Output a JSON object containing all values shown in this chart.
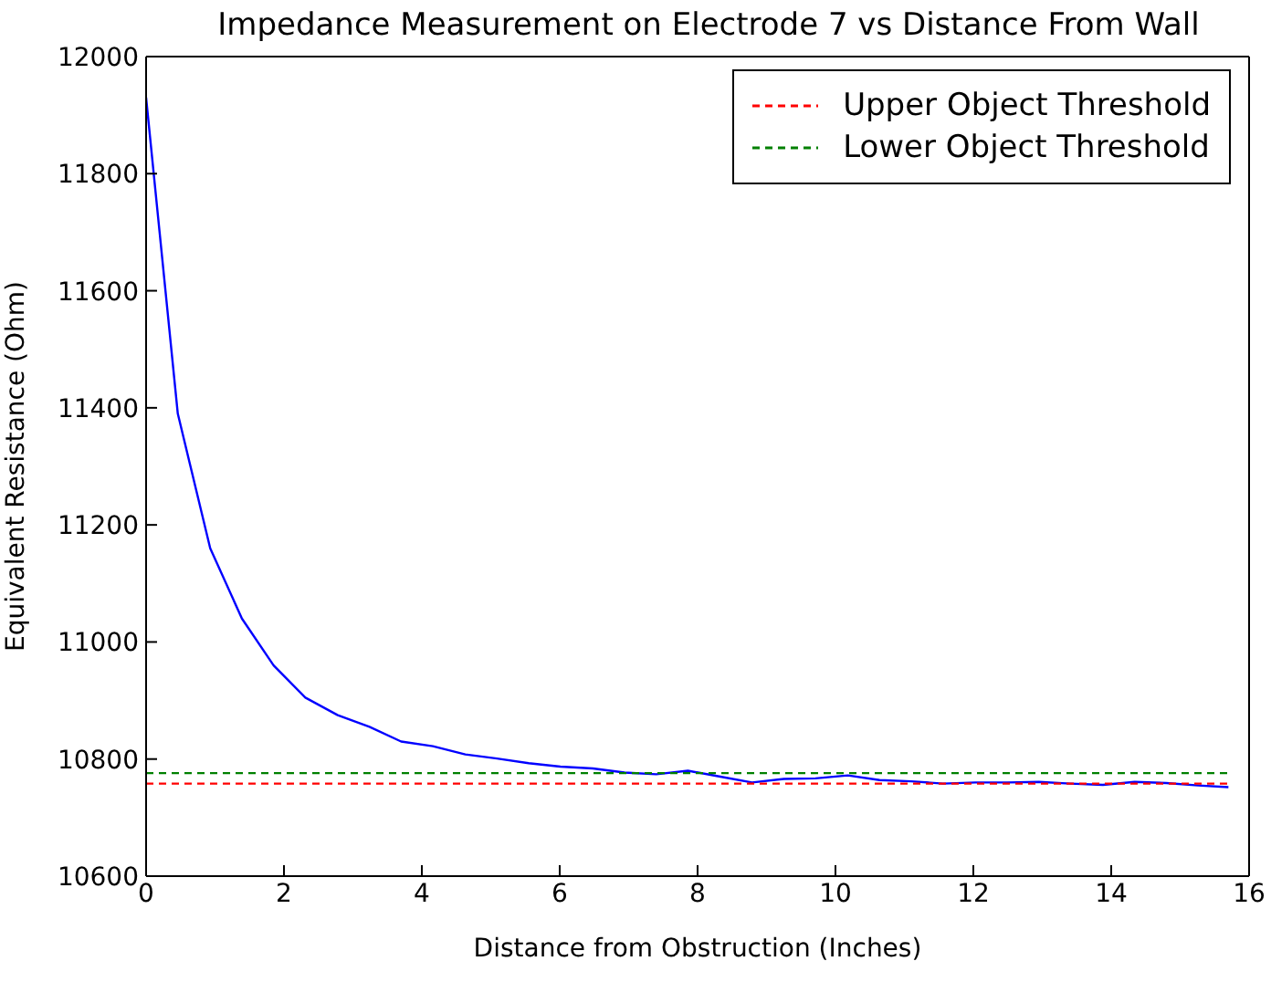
{
  "chart_data": {
    "type": "line",
    "title": "Impedance Measurement on Electrode 7 vs Distance From Wall",
    "xlabel": "Distance from Obstruction (Inches)",
    "ylabel": "Equivalent Resistance (Ohm)",
    "xlim": [
      0,
      16
    ],
    "xticks": [
      0,
      2,
      4,
      6,
      8,
      10,
      12,
      14,
      16
    ],
    "ylim": [
      10600,
      12000
    ],
    "yticks": [
      10600,
      10800,
      11000,
      11200,
      11400,
      11600,
      11800,
      12000
    ],
    "grid": false,
    "legend": "top right",
    "marker": "none",
    "series": [
      {
        "color": "#0000ff",
        "line_style": "solid",
        "x": [
          0,
          0.46,
          0.93,
          1.39,
          1.85,
          2.31,
          2.78,
          3.24,
          3.7,
          4.16,
          4.63,
          5.09,
          5.55,
          6.01,
          6.48,
          6.94,
          7.4,
          7.86,
          8.33,
          8.79,
          9.25,
          9.71,
          10.18,
          10.64,
          11.1,
          11.56,
          12.03,
          12.49,
          12.95,
          13.41,
          13.88,
          14.34,
          14.8,
          15.26,
          15.7
        ],
        "values": [
          11930,
          11390,
          11160,
          11040,
          10960,
          10905,
          10875,
          10855,
          10830,
          10822,
          10808,
          10801,
          10793,
          10787,
          10784,
          10777,
          10774,
          10780,
          10770,
          10760,
          10766,
          10767,
          10772,
          10764,
          10762,
          10758,
          10760,
          10760,
          10761,
          10758,
          10756,
          10761,
          10759,
          10755,
          10752
        ]
      },
      {
        "name": "Upper Object Threshold",
        "color": "#ff0000",
        "line_style": "dashed",
        "x": [
          0,
          15.7
        ],
        "values": [
          10758,
          10758
        ]
      },
      {
        "name": "Lower Object Threshold",
        "color": "#008000",
        "line_style": "dashed",
        "x": [
          0,
          15.7
        ],
        "values": [
          10776,
          10776
        ]
      }
    ]
  }
}
